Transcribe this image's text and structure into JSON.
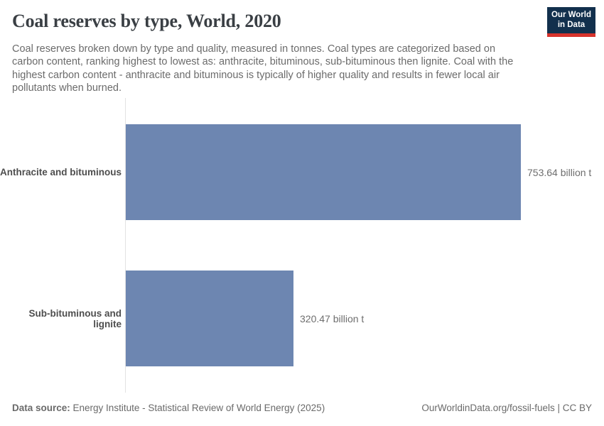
{
  "header": {
    "title": "Coal reserves by type, World, 2020",
    "subtitle_lines": [
      "Coal reserves broken down by type and quality, measured in tonnes. Coal types are categorized based on",
      "carbon content, ranking highest to lowest as: anthracite, bituminous, sub-bituminous then lignite. Coal with the",
      "highest carbon content - anthracite and bituminous is typically of higher quality and results in fewer local air",
      "pollutants when burned."
    ],
    "logo": {
      "line1": "Our World",
      "line2": "in Data",
      "bg_color": "#12304d",
      "accent_color": "#d7332c"
    }
  },
  "chart_data": {
    "type": "bar",
    "orientation": "horizontal",
    "title": "Coal reserves by type, World, 2020",
    "categories": [
      "Anthracite and bituminous",
      "Sub-bituminous and lignite"
    ],
    "values": [
      753.64,
      320.47
    ],
    "value_labels": [
      "753.64 billion t",
      "320.47 billion t"
    ],
    "unit": "billion t",
    "xlim": [
      0,
      753.64
    ],
    "grid": false,
    "legend": "none",
    "bar_color": "#6d86b1",
    "axis_color": "#e2e2e2"
  },
  "footer": {
    "datasource_label": "Data source:",
    "datasource_text": " Energy Institute - Statistical Review of World Energy (2025)",
    "attribution": "OurWorldinData.org/fossil-fuels | CC BY"
  }
}
